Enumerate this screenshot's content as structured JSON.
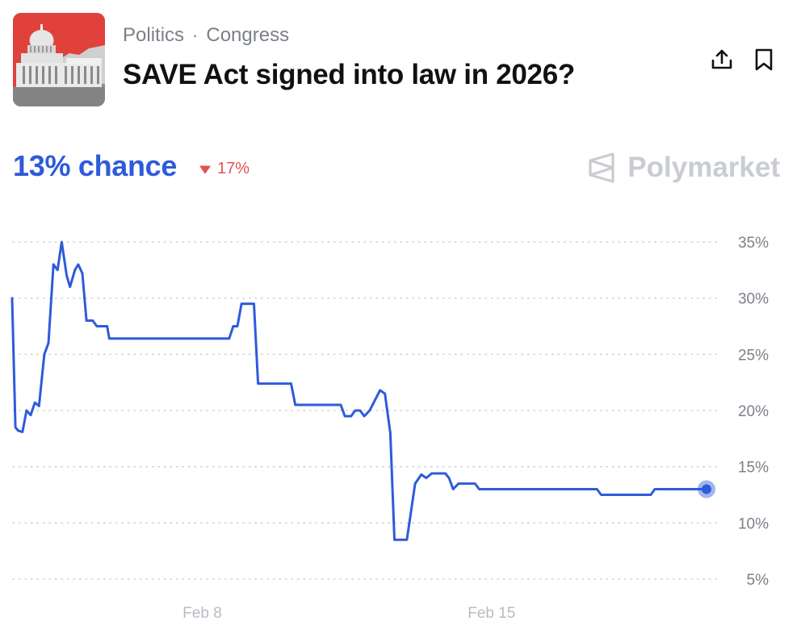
{
  "header": {
    "breadcrumb": [
      "Politics",
      "Congress"
    ],
    "breadcrumb_sep": "·",
    "title": "SAVE Act signed into law in 2026?"
  },
  "icons": {
    "share": "share-icon",
    "bookmark": "bookmark-icon",
    "thumbnail": "capitol-building-image",
    "logo": "polymarket-logo-icon"
  },
  "summary": {
    "chance_label": "13% chance",
    "change_label": "17%",
    "change_direction": "down"
  },
  "brand": {
    "name": "Polymarket"
  },
  "colors": {
    "line": "#2e5bdb",
    "accent": "#2e5bdb",
    "negative": "#e0544f",
    "thumbnail_bg": "#e0413a"
  },
  "chart_data": {
    "type": "line",
    "xlabel": "",
    "ylabel": "",
    "x_ticks": [
      {
        "label": "Feb 8",
        "day": 8
      },
      {
        "label": "Feb 15",
        "day": 15
      }
    ],
    "y_ticks": [
      "35%",
      "30%",
      "25%",
      "20%",
      "15%",
      "10%",
      "5%"
    ],
    "ylim": [
      5,
      35
    ],
    "xlim": [
      3.4,
      20.2
    ],
    "grid": true,
    "series": [
      {
        "values": [
          [
            3.4,
            30.0
          ],
          [
            3.48,
            18.5
          ],
          [
            3.55,
            18.2
          ],
          [
            3.65,
            18.1
          ],
          [
            3.75,
            20.0
          ],
          [
            3.85,
            19.6
          ],
          [
            3.95,
            20.7
          ],
          [
            4.05,
            20.4
          ],
          [
            4.18,
            25.0
          ],
          [
            4.28,
            26.0
          ],
          [
            4.4,
            33.0
          ],
          [
            4.5,
            32.5
          ],
          [
            4.6,
            35.0
          ],
          [
            4.72,
            32.0
          ],
          [
            4.8,
            31.0
          ],
          [
            4.92,
            32.5
          ],
          [
            5.0,
            33.0
          ],
          [
            5.1,
            32.2
          ],
          [
            5.2,
            28.0
          ],
          [
            5.35,
            28.0
          ],
          [
            5.45,
            27.5
          ],
          [
            5.7,
            27.5
          ],
          [
            5.75,
            26.4
          ],
          [
            8.65,
            26.4
          ],
          [
            8.75,
            27.5
          ],
          [
            8.85,
            27.5
          ],
          [
            8.95,
            29.5
          ],
          [
            9.25,
            29.5
          ],
          [
            9.35,
            22.4
          ],
          [
            10.15,
            22.4
          ],
          [
            10.25,
            20.5
          ],
          [
            11.35,
            20.5
          ],
          [
            11.45,
            19.5
          ],
          [
            11.6,
            19.5
          ],
          [
            11.7,
            20.0
          ],
          [
            11.82,
            20.0
          ],
          [
            11.92,
            19.5
          ],
          [
            12.05,
            20.0
          ],
          [
            12.3,
            21.8
          ],
          [
            12.42,
            21.5
          ],
          [
            12.55,
            18.0
          ],
          [
            12.65,
            8.5
          ],
          [
            12.95,
            8.5
          ],
          [
            13.15,
            13.5
          ],
          [
            13.3,
            14.3
          ],
          [
            13.42,
            14.0
          ],
          [
            13.55,
            14.4
          ],
          [
            13.88,
            14.4
          ],
          [
            13.97,
            14.0
          ],
          [
            14.07,
            13.0
          ],
          [
            14.2,
            13.5
          ],
          [
            14.6,
            13.5
          ],
          [
            14.7,
            13.0
          ],
          [
            17.55,
            13.0
          ],
          [
            17.65,
            12.5
          ],
          [
            18.85,
            12.5
          ],
          [
            18.95,
            13.0
          ],
          [
            20.2,
            13.0
          ]
        ]
      }
    ],
    "last_value": 13
  }
}
